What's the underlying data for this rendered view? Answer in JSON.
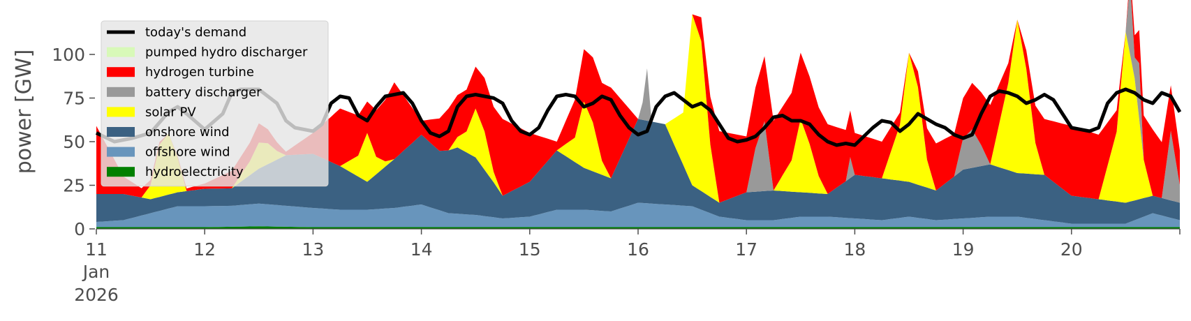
{
  "chart_data": {
    "type": "area",
    "title": "",
    "xlabel": "",
    "ylabel": "power [GW]",
    "ylim": [
      0,
      120
    ],
    "yticks": [
      0,
      25,
      50,
      75,
      100
    ],
    "xlim": [
      0,
      240
    ],
    "x_unit": "hours since 11 Jan 2026 00:00",
    "xticks": [
      {
        "x": 0,
        "label": "11"
      },
      {
        "x": 24,
        "label": "12"
      },
      {
        "x": 48,
        "label": "13"
      },
      {
        "x": 72,
        "label": "14"
      },
      {
        "x": 96,
        "label": "15"
      },
      {
        "x": 120,
        "label": "16"
      },
      {
        "x": 144,
        "label": "17"
      },
      {
        "x": 168,
        "label": "18"
      },
      {
        "x": 192,
        "label": "19"
      },
      {
        "x": 216,
        "label": "20"
      }
    ],
    "x_month_label": "Jan",
    "x_year_label": "2026",
    "grid": false,
    "legend_position": "upper-left",
    "legend": [
      {
        "label": "today's demand",
        "kind": "line",
        "color": "#000000"
      },
      {
        "label": "pumped hydro discharger",
        "kind": "patch",
        "color": "#d8f9b8"
      },
      {
        "label": "hydrogen turbine",
        "kind": "patch",
        "color": "#ff0000"
      },
      {
        "label": "battery discharger",
        "kind": "patch",
        "color": "#999999"
      },
      {
        "label": "solar PV",
        "kind": "patch",
        "color": "#ffff00"
      },
      {
        "label": "onshore wind",
        "kind": "patch",
        "color": "#3b6182"
      },
      {
        "label": "offshore wind",
        "kind": "patch",
        "color": "#6895bc"
      },
      {
        "label": "hydroelectricity",
        "kind": "patch",
        "color": "#008000"
      }
    ],
    "stack_order": [
      "hydroelectricity",
      "offshore wind",
      "onshore wind",
      "solar PV",
      "battery discharger",
      "hydrogen turbine",
      "pumped hydro discharger"
    ],
    "series": [
      {
        "name": "hydroelectricity",
        "color": "#008000",
        "x": [
          0,
          24,
          36,
          48,
          72,
          96,
          120,
          144,
          168,
          192,
          216,
          240
        ],
        "y": [
          1,
          1,
          1.5,
          1,
          1,
          1,
          1,
          1,
          1,
          1,
          1,
          1
        ]
      },
      {
        "name": "offshore wind",
        "color": "#6895bc",
        "x": [
          0,
          6,
          12,
          18,
          24,
          30,
          36,
          42,
          48,
          54,
          60,
          66,
          72,
          78,
          84,
          90,
          96,
          102,
          108,
          114,
          120,
          126,
          132,
          138,
          144,
          150,
          156,
          162,
          168,
          174,
          180,
          186,
          192,
          198,
          204,
          210,
          216,
          222,
          228,
          234,
          240
        ],
        "y": [
          3,
          4,
          8,
          12,
          12,
          12,
          13,
          12,
          11,
          10,
          10,
          11,
          13,
          8,
          7,
          5,
          6,
          10,
          10,
          9,
          14,
          13,
          12,
          6,
          4,
          4,
          6,
          6,
          5,
          4,
          6,
          4,
          5,
          6,
          6,
          4,
          2,
          2,
          2,
          8,
          4
        ]
      },
      {
        "name": "onshore wind",
        "color": "#3b6182",
        "x": [
          0,
          6,
          12,
          18,
          24,
          30,
          36,
          42,
          48,
          54,
          60,
          66,
          72,
          76,
          80,
          84,
          88,
          90,
          96,
          102,
          108,
          114,
          120,
          126,
          132,
          138,
          144,
          150,
          156,
          162,
          168,
          174,
          180,
          186,
          192,
          198,
          204,
          210,
          216,
          222,
          228,
          234,
          240
        ],
        "y": [
          16,
          15,
          8,
          8,
          10,
          10,
          20,
          29,
          31,
          25,
          16,
          28,
          40,
          34,
          38,
          33,
          20,
          13,
          20,
          34,
          24,
          19,
          48,
          46,
          12,
          8,
          16,
          17,
          14,
          13,
          25,
          24,
          20,
          17,
          28,
          30,
          25,
          26,
          16,
          14,
          12,
          10,
          10
        ]
      },
      {
        "name": "solar PV",
        "color": "#ffff00",
        "x": [
          0,
          10,
          12,
          14,
          16,
          18,
          20,
          30,
          34,
          36,
          38,
          40,
          42,
          54,
          58,
          60,
          62,
          64,
          66,
          78,
          82,
          84,
          86,
          88,
          90,
          102,
          106,
          108,
          110,
          112,
          114,
          126,
          130,
          132,
          134,
          136,
          138,
          150,
          154,
          156,
          158,
          160,
          162,
          174,
          178,
          180,
          182,
          184,
          186,
          198,
          202,
          204,
          206,
          208,
          210,
          222,
          226,
          228,
          230,
          232,
          234
        ],
        "y": [
          0,
          0,
          8,
          30,
          35,
          20,
          0,
          0,
          8,
          15,
          12,
          5,
          0,
          0,
          12,
          28,
          10,
          3,
          0,
          0,
          12,
          28,
          22,
          6,
          0,
          0,
          14,
          38,
          28,
          8,
          0,
          0,
          30,
          98,
          86,
          30,
          0,
          0,
          18,
          42,
          28,
          10,
          0,
          0,
          32,
          74,
          56,
          16,
          0,
          0,
          50,
          88,
          60,
          18,
          0,
          0,
          40,
          98,
          70,
          22,
          0
        ]
      },
      {
        "name": "battery discharger",
        "color": "#999999",
        "x": [
          0,
          120,
          121,
          122,
          123,
          144,
          146,
          148,
          150,
          166,
          167,
          168,
          190,
          192,
          194,
          196,
          198,
          200,
          228,
          229,
          230,
          231,
          232,
          233,
          234,
          235,
          236,
          238,
          239,
          240
        ],
        "y": [
          0,
          0,
          10,
          30,
          0,
          0,
          25,
          40,
          0,
          0,
          12,
          0,
          0,
          18,
          22,
          12,
          0,
          0,
          0,
          42,
          12,
          32,
          0,
          0,
          0,
          0,
          0,
          40,
          25,
          10
        ]
      },
      {
        "name": "hydrogen turbine",
        "color": "#ff0000",
        "x": [
          0,
          6,
          12,
          16,
          24,
          30,
          36,
          42,
          48,
          54,
          60,
          66,
          72,
          78,
          84,
          90,
          96,
          102,
          108,
          114,
          120,
          126,
          132,
          138,
          144,
          150,
          156,
          162,
          168,
          174,
          180,
          186,
          192,
          198,
          204,
          210,
          216,
          222,
          228,
          234,
          240
        ],
        "y": [
          39,
          10,
          3,
          0,
          3,
          10,
          11,
          2,
          12,
          33,
          18,
          44,
          8,
          24,
          24,
          44,
          28,
          5,
          30,
          52,
          0,
          0,
          0,
          41,
          32,
          40,
          38,
          40,
          24,
          21,
          0,
          27,
          23,
          34,
          0,
          32,
          40,
          37,
          0,
          38,
          20
        ]
      },
      {
        "name": "pumped hydro discharger",
        "color": "#d8f9b8",
        "x": [
          0,
          12,
          18,
          24,
          30,
          36,
          42,
          48,
          54,
          240
        ],
        "y": [
          0,
          0,
          0,
          0,
          0,
          0,
          0,
          0,
          0,
          0
        ]
      },
      {
        "name": "today's demand",
        "color": "#000000",
        "x": [
          0,
          4,
          8,
          12,
          16,
          18,
          20,
          24,
          28,
          30,
          32,
          36,
          38,
          40,
          42,
          44,
          48,
          50,
          52,
          54,
          56,
          58,
          60,
          62,
          64,
          66,
          68,
          70,
          72,
          74,
          76,
          78,
          80,
          82,
          84,
          86,
          88,
          90,
          92,
          94,
          96,
          98,
          100,
          102,
          104,
          106,
          108,
          110,
          112,
          114,
          116,
          118,
          120,
          122,
          124,
          126,
          128,
          130,
          132,
          134,
          136,
          138,
          140,
          142,
          144,
          146,
          148,
          150,
          152,
          154,
          156,
          158,
          160,
          162,
          164,
          166,
          168,
          170,
          172,
          174,
          176,
          178,
          180,
          182,
          184,
          186,
          188,
          190,
          192,
          194,
          196,
          198,
          200,
          202,
          204,
          206,
          208,
          210,
          212,
          214,
          216,
          218,
          220,
          222,
          224,
          226,
          228,
          230,
          232,
          234,
          236,
          238,
          240
        ],
        "y": [
          55,
          50,
          52,
          55,
          67,
          70,
          66,
          57,
          66,
          78,
          80,
          80,
          76,
          72,
          62,
          58,
          56,
          60,
          72,
          76,
          75,
          65,
          62,
          70,
          76,
          77,
          78,
          72,
          62,
          55,
          53,
          56,
          70,
          76,
          77,
          76,
          75,
          72,
          62,
          56,
          54,
          58,
          68,
          76,
          77,
          76,
          70,
          72,
          76,
          74,
          65,
          58,
          54,
          56,
          70,
          76,
          78,
          74,
          70,
          72,
          68,
          60,
          52,
          50,
          51,
          53,
          58,
          64,
          65,
          62,
          62,
          60,
          54,
          50,
          48,
          49,
          48,
          53,
          58,
          62,
          61,
          56,
          60,
          66,
          63,
          60,
          58,
          54,
          52,
          54,
          66,
          76,
          79,
          78,
          76,
          72,
          74,
          77,
          74,
          66,
          58,
          57,
          56,
          58,
          72,
          78,
          80,
          78,
          74,
          72,
          78,
          76,
          67
        ]
      }
    ]
  }
}
